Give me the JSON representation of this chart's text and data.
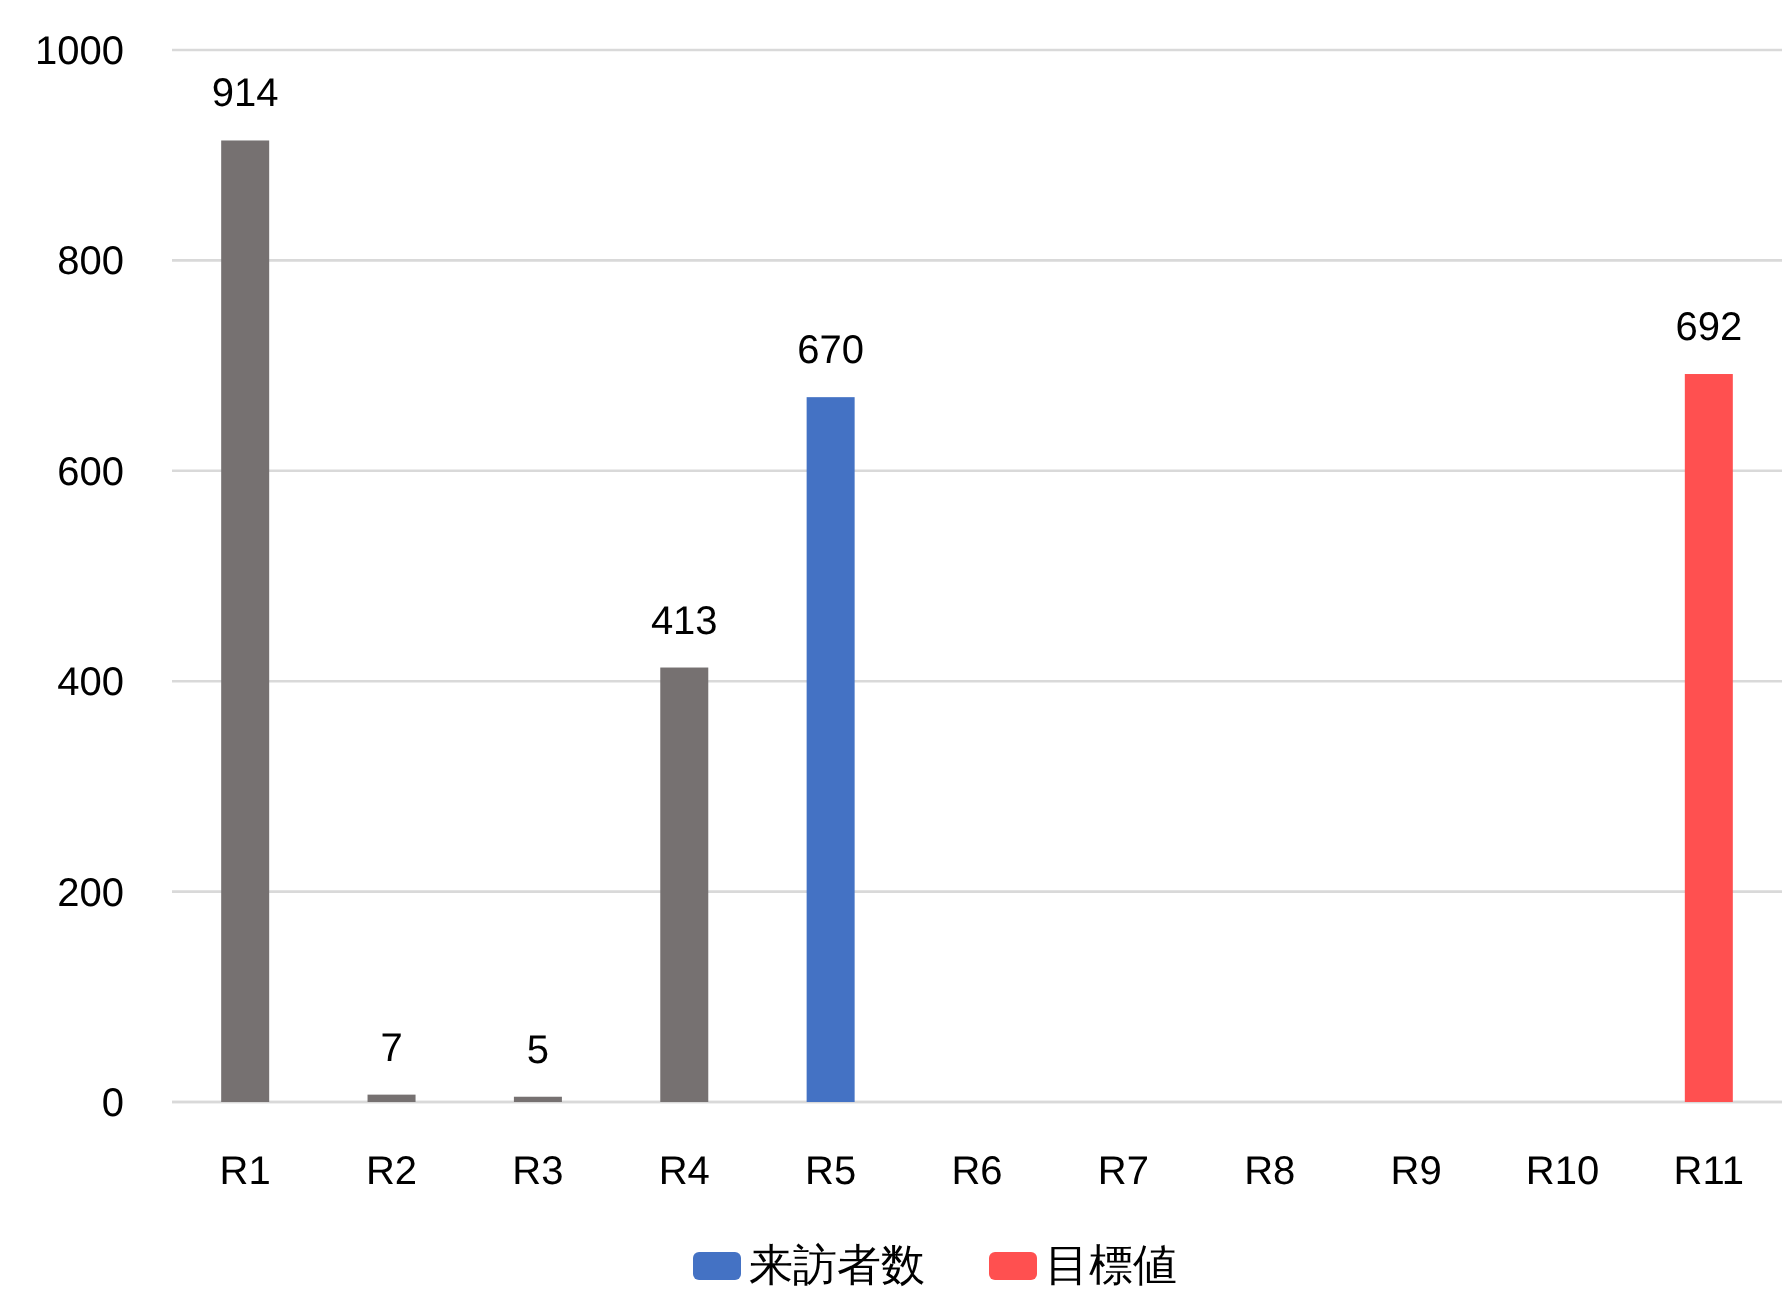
{
  "chart_data": {
    "type": "bar",
    "categories": [
      "R1",
      "R2",
      "R3",
      "R4",
      "R5",
      "R6",
      "R7",
      "R8",
      "R9",
      "R10",
      "R11"
    ],
    "series": [
      {
        "name": "来訪者数",
        "color": "#4472c4",
        "colors": [
          "#767171",
          "#767171",
          "#767171",
          "#767171",
          "#4472c4",
          null,
          null,
          null,
          null,
          null,
          null
        ],
        "values": [
          914,
          7,
          5,
          413,
          670,
          null,
          null,
          null,
          null,
          null,
          null
        ]
      },
      {
        "name": "目標値",
        "color": "#ff5050",
        "values": [
          null,
          null,
          null,
          null,
          null,
          null,
          null,
          null,
          null,
          null,
          692
        ]
      }
    ],
    "ylim": [
      0,
      1000
    ],
    "yticks": [
      0,
      200,
      400,
      600,
      800,
      1000
    ],
    "grid": "y",
    "legend": "bottom",
    "data_labels": true
  }
}
